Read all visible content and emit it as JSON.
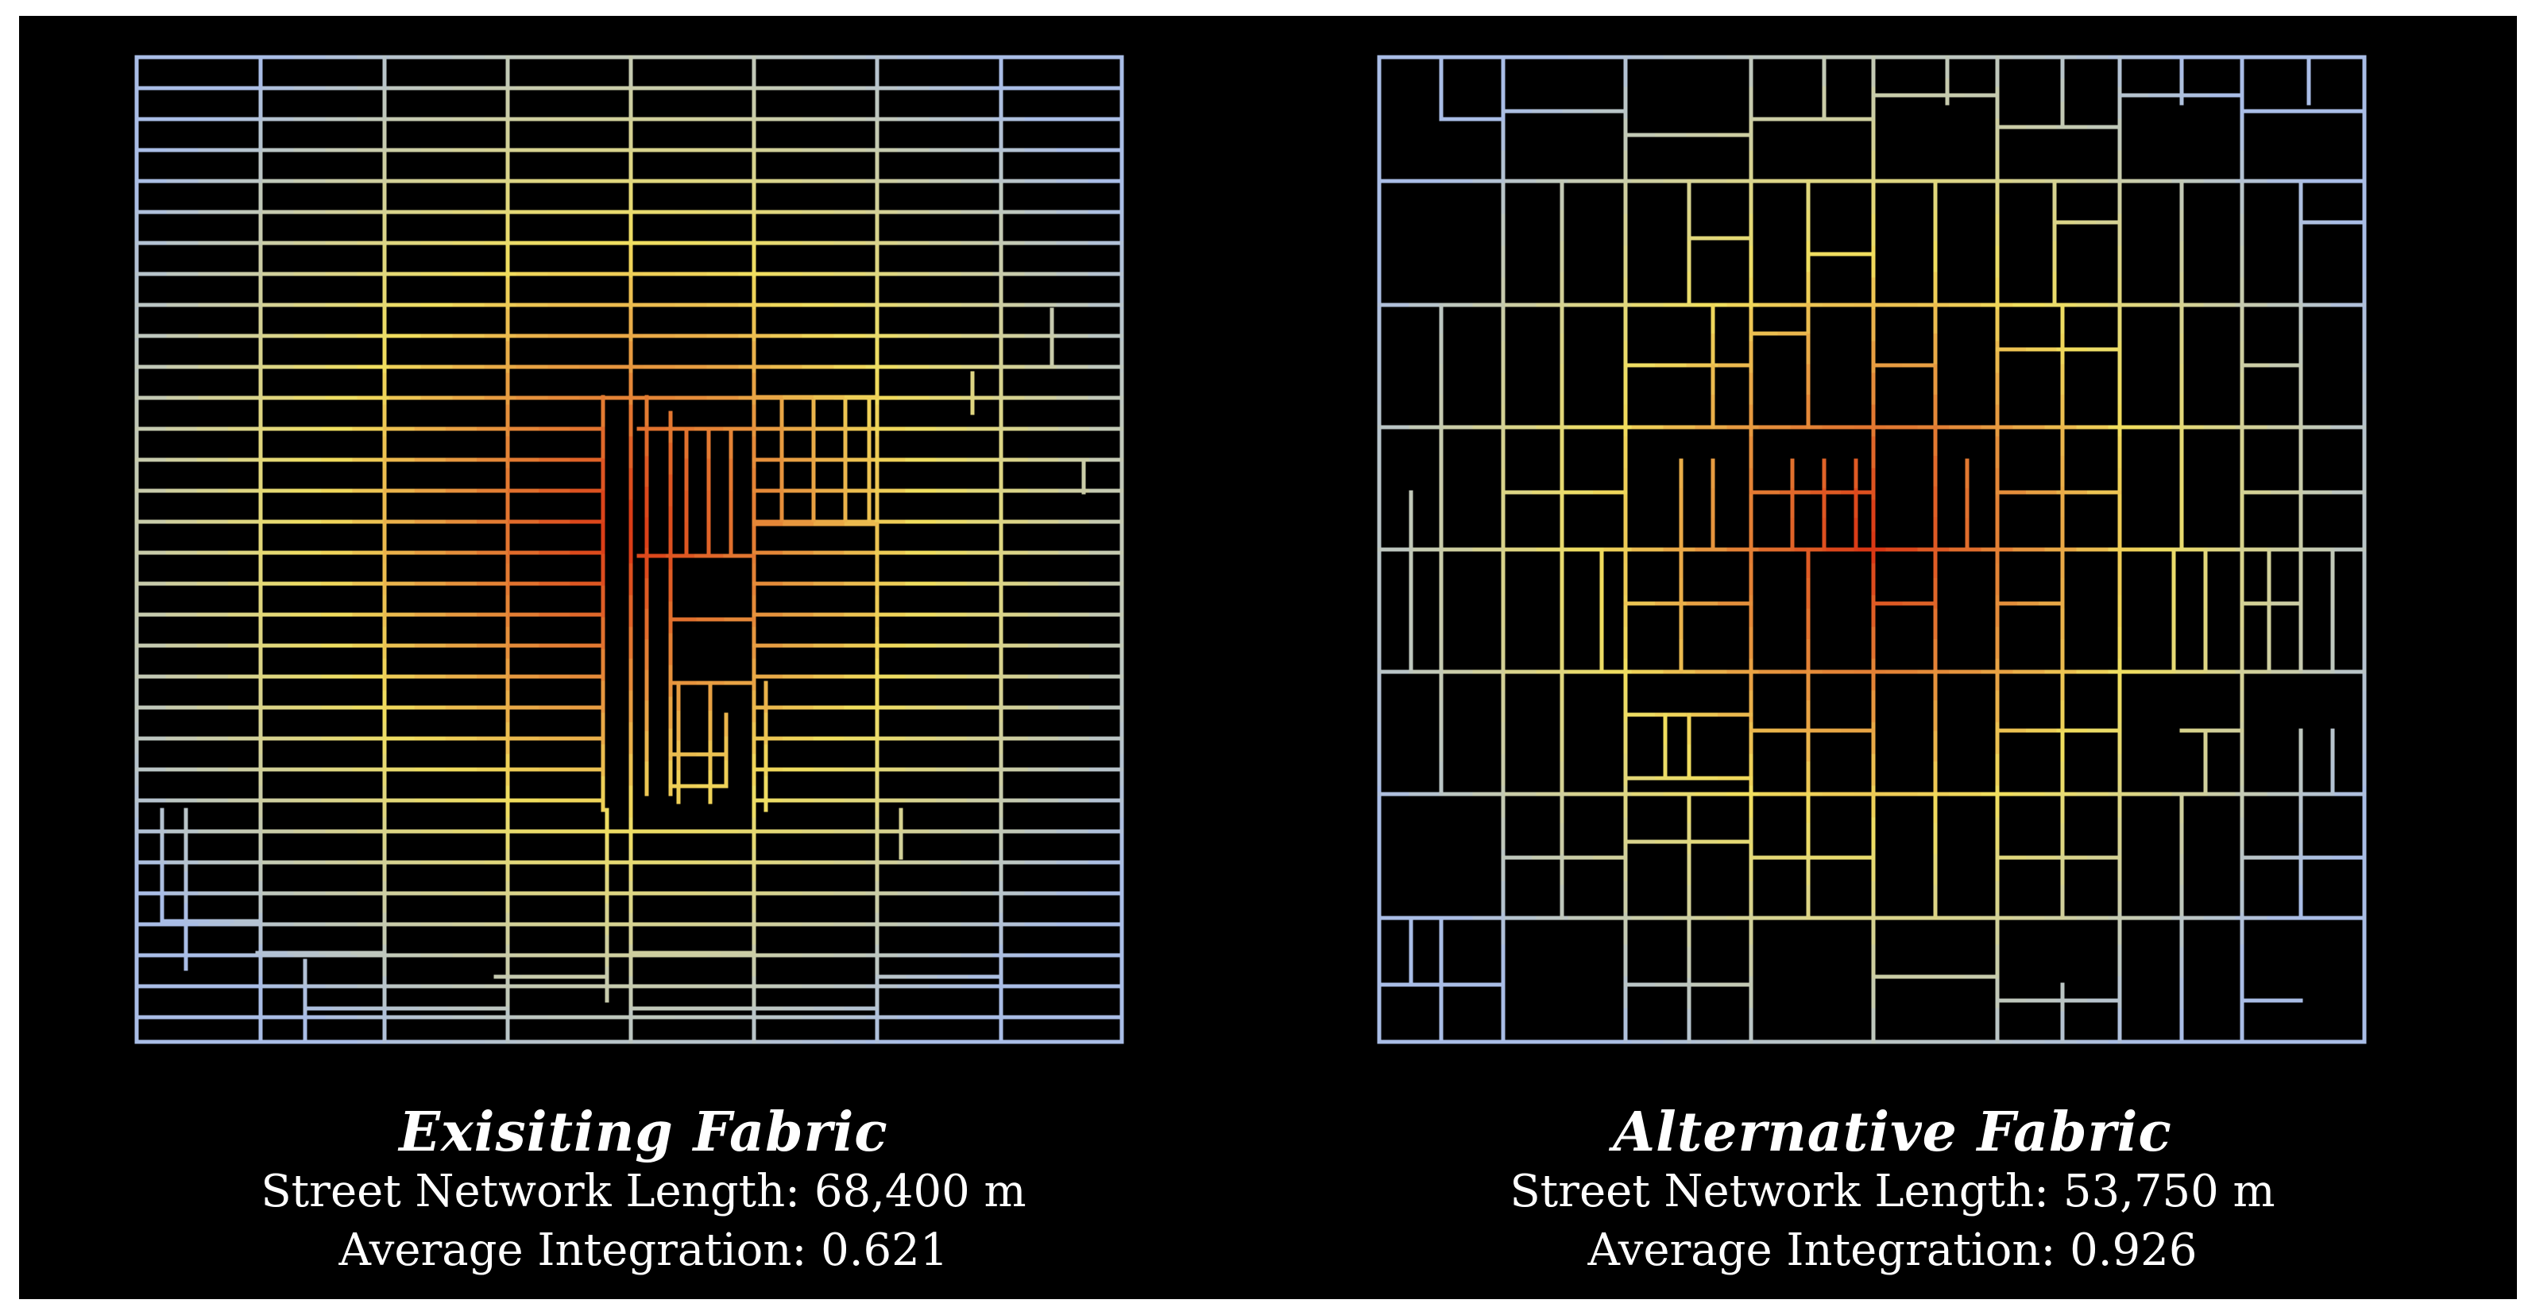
{
  "colors": {
    "background": "#000000",
    "low_integration": "#a9bde6",
    "mid_integration": "#f0de5e",
    "high_integration": "#d93212"
  },
  "panels": [
    {
      "title": "Exisiting Fabric",
      "street_length": "Street Network Length: 68,400 m",
      "integration": "Average Integration: 0.621",
      "network": "uniform fine rectangular grid"
    },
    {
      "title": "Alternative Fabric",
      "street_length": "Street Network Length: 53,750 m",
      "integration": "Average Integration: 0.926",
      "network": "irregular large-block grid"
    }
  ]
}
